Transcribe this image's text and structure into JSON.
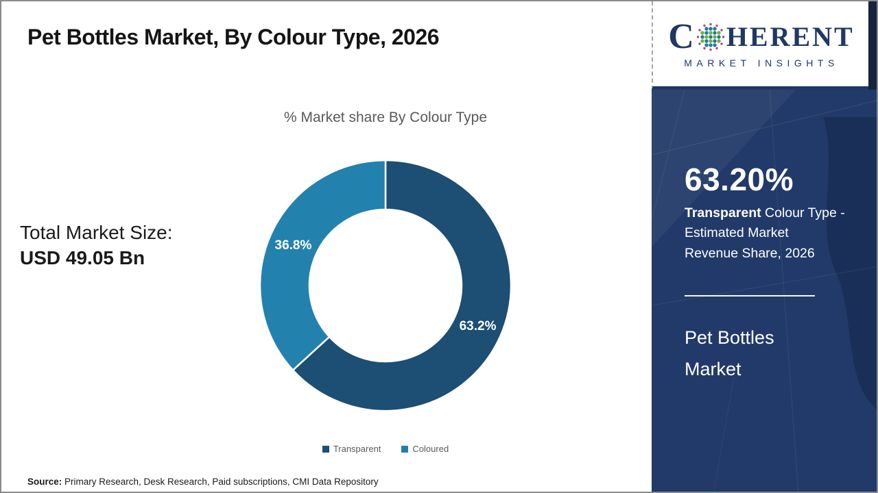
{
  "header": {
    "title": "Pet Bottles Market, By Colour Type, 2026"
  },
  "logo": {
    "name": "Coherent Market Insights",
    "word_c": "C",
    "word_rest": "HERENT",
    "subtitle": "MARKET INSIGHTS",
    "navy": "#1F3864",
    "globe_colors": {
      "teal": "#1C7F98",
      "green": "#6FB043",
      "magenta": "#BE3D8E"
    }
  },
  "left_panel": {
    "total_label": "Total Market Size:",
    "total_value": "USD 49.05 Bn"
  },
  "chart_data": {
    "type": "pie",
    "donut": true,
    "title": "% Market share By Colour Type",
    "series": [
      {
        "name": "Transparent",
        "value": 63.2,
        "label": "63.2%",
        "color": "#1D4E74"
      },
      {
        "name": "Coloured",
        "value": 36.8,
        "label": "36.8%",
        "color": "#2381AE"
      }
    ],
    "start_angle_deg": 0,
    "legend_position": "bottom",
    "geometry": {
      "outer_radius": 183,
      "inner_radius": 111
    }
  },
  "sidebar": {
    "stat_value": "63.20%",
    "stat_desc_bold": "Transparent",
    "stat_desc_rest": " Colour Type -\nEstimated Market\nRevenue Share, 2026",
    "market_name": "Pet Bottles\nMarket",
    "background_color": "#223A69"
  },
  "footer": {
    "source_label": "Source:",
    "source_text": " Primary Research, Desk Research, Paid subscriptions, CMI Data Repository"
  }
}
